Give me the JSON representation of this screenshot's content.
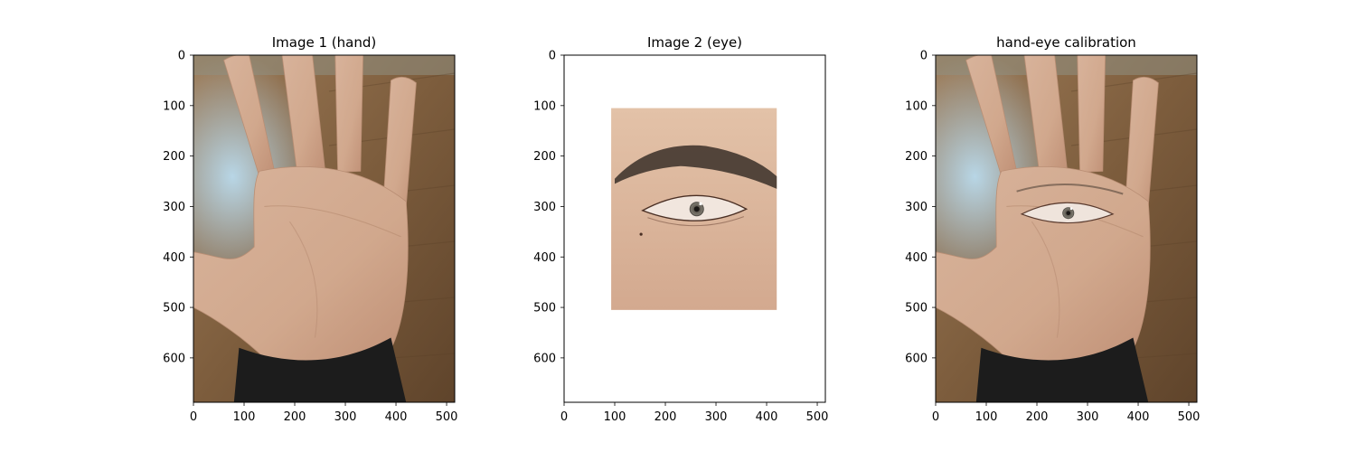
{
  "figure": {
    "panels": [
      {
        "title": "Image 1 (hand)",
        "content": "hand",
        "xticks": [
          "0",
          "100",
          "200",
          "300",
          "400",
          "500"
        ],
        "yticks": [
          "0",
          "100",
          "200",
          "300",
          "400",
          "500",
          "600"
        ]
      },
      {
        "title": "Image 2 (eye)",
        "content": "eye",
        "xticks": [
          "0",
          "100",
          "200",
          "300",
          "400",
          "500"
        ],
        "yticks": [
          "0",
          "100",
          "200",
          "300",
          "400",
          "500",
          "600"
        ]
      },
      {
        "title": "hand-eye calibration",
        "content": "hand-eye",
        "xticks": [
          "0",
          "100",
          "200",
          "300",
          "400",
          "500"
        ],
        "yticks": [
          "0",
          "100",
          "200",
          "300",
          "400",
          "500",
          "600"
        ]
      }
    ],
    "image_extent": {
      "width": 516,
      "height": 688
    },
    "colors": {
      "skin": "#d9b49a",
      "skin_shadow": "#b98e74",
      "floor_wood": "#8a6a45",
      "floor_dark": "#5b4128",
      "wall_blue": "#a9c8da",
      "sleeve": "#1c1c1c",
      "iris": "#6e6a60",
      "brow": "#3a2f28"
    }
  }
}
